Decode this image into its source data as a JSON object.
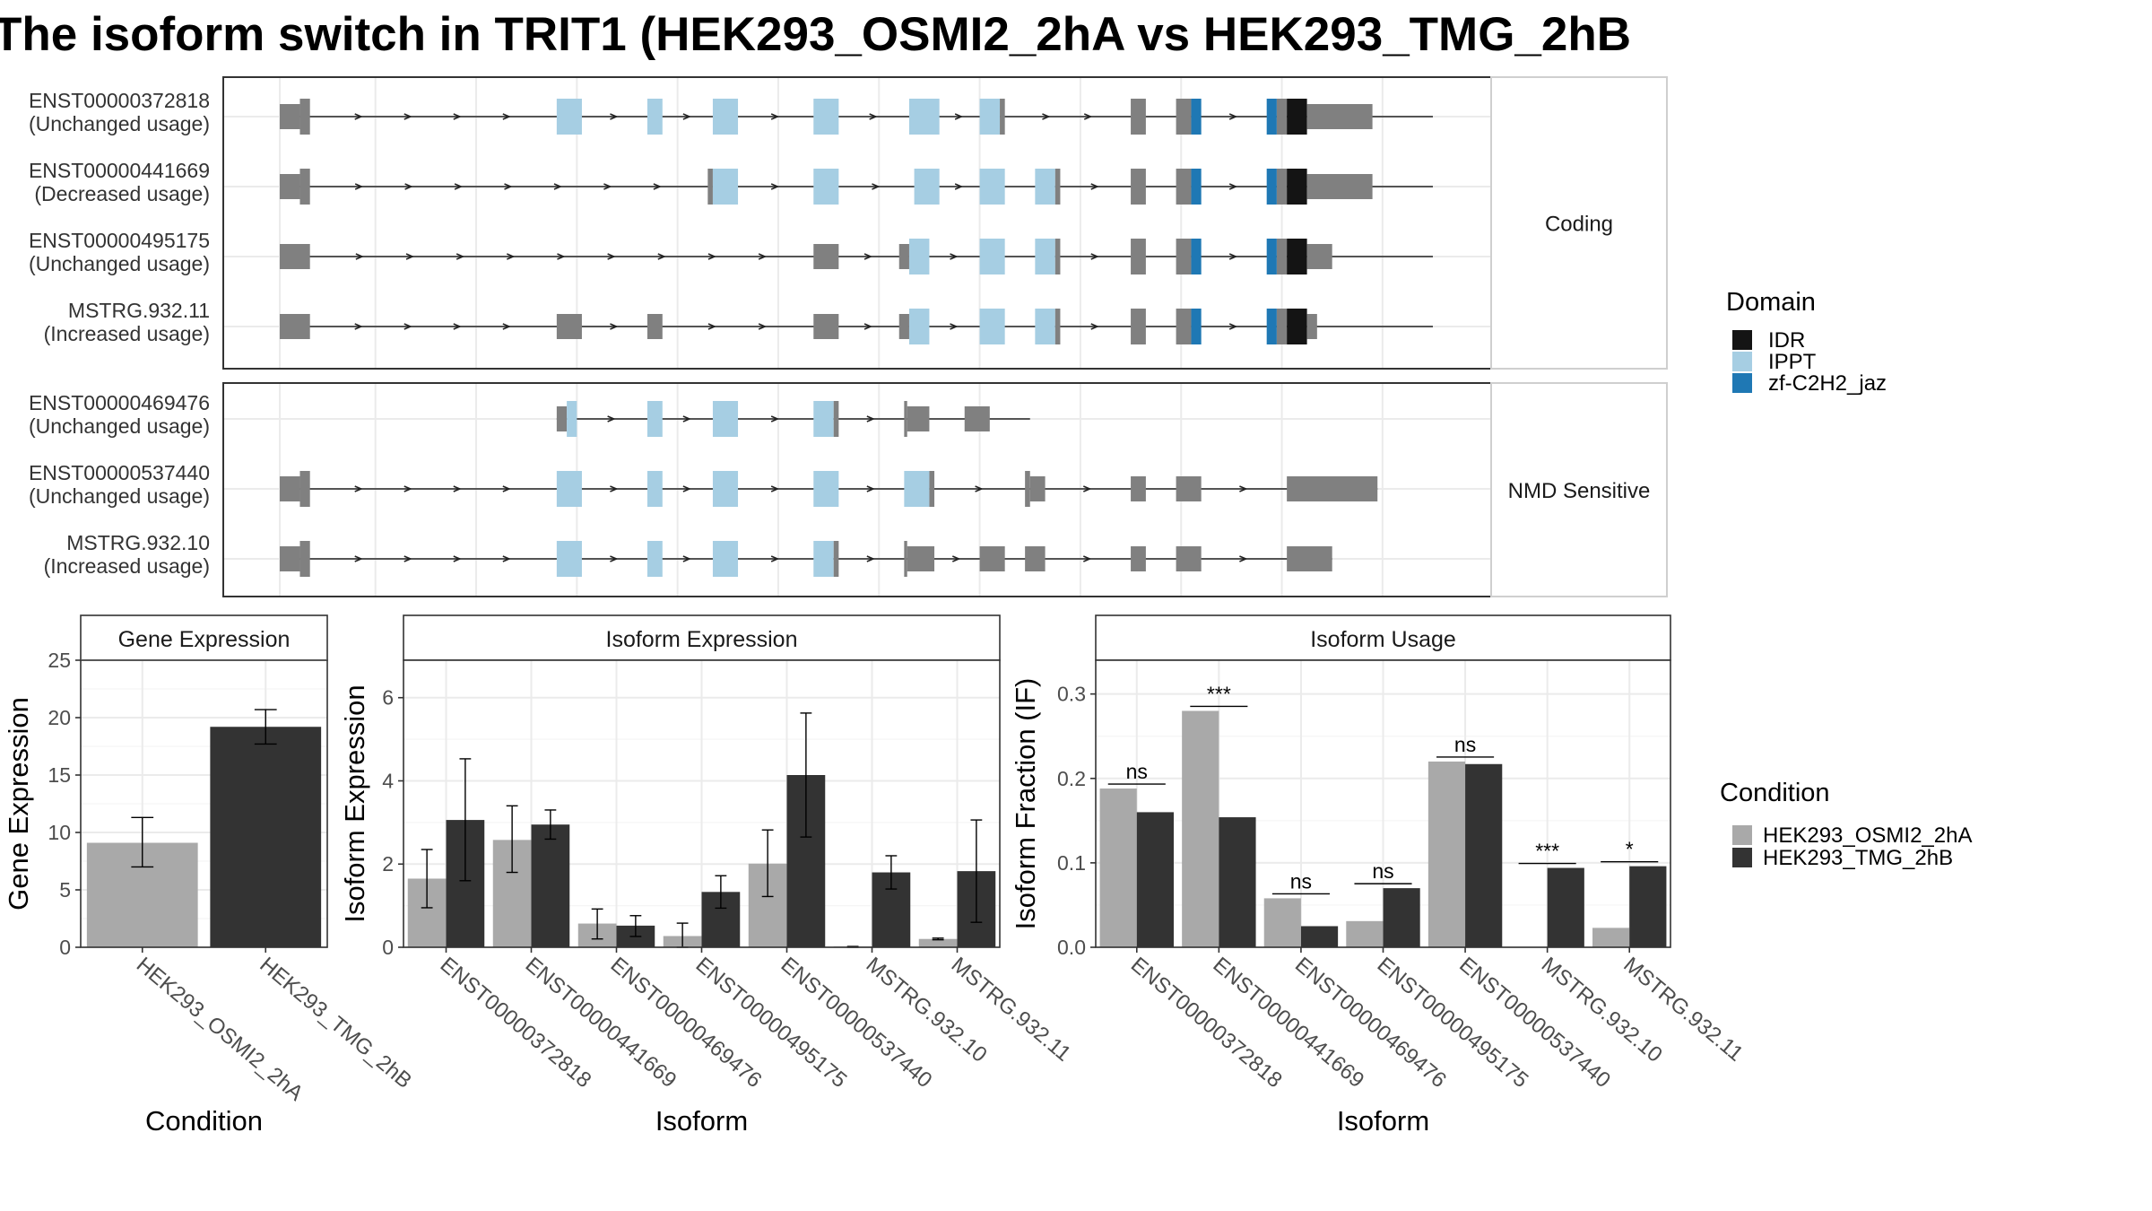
{
  "title": "The isoform switch in TRIT1 (HEK293_OSMI2_2hA vs HEK293_TMG_2hB",
  "colors": {
    "IDR": "#141414",
    "IPPT": "#a6cee3",
    "zf-C2H2_jaz": "#1f78b4",
    "exon": "#808080",
    "cond_a": "#a9a9a9",
    "cond_b": "#333333"
  },
  "structure": {
    "facets": [
      {
        "label": "Coding",
        "transcripts": [
          {
            "id": "ENST00000372818",
            "usage": "(Unchanged usage)",
            "span": [
              1,
              230
            ],
            "exons": [
              [
                1,
                5,
                "u"
              ],
              [
                5,
                7,
                "c"
              ],
              [
                56,
                61,
                "IPPT"
              ],
              [
                74,
                77,
                "IPPT"
              ],
              [
                87,
                92,
                "IPPT"
              ],
              [
                107,
                112,
                "IPPT"
              ],
              [
                126,
                132,
                "IPPT"
              ],
              [
                140,
                144,
                "IPPT"
              ],
              [
                144,
                145,
                "c"
              ],
              [
                170,
                173,
                "c"
              ],
              [
                179,
                182,
                "c"
              ],
              [
                182,
                184,
                "zf-C2H2_jaz"
              ],
              [
                197,
                199,
                "zf-C2H2_jaz"
              ],
              [
                199,
                201,
                "c"
              ],
              [
                201,
                205,
                "IDR"
              ],
              [
                205,
                218,
                "u"
              ]
            ]
          },
          {
            "id": "ENST00000441669",
            "usage": "(Decreased usage)",
            "span": [
              1,
              230
            ],
            "exons": [
              [
                1,
                5,
                "u"
              ],
              [
                5,
                7,
                "c"
              ],
              [
                86,
                87,
                "c"
              ],
              [
                87,
                92,
                "IPPT"
              ],
              [
                107,
                112,
                "IPPT"
              ],
              [
                127,
                132,
                "IPPT"
              ],
              [
                140,
                145,
                "IPPT"
              ],
              [
                151,
                155,
                "IPPT"
              ],
              [
                155,
                156,
                "c"
              ],
              [
                170,
                173,
                "c"
              ],
              [
                179,
                182,
                "c"
              ],
              [
                182,
                184,
                "zf-C2H2_jaz"
              ],
              [
                197,
                199,
                "zf-C2H2_jaz"
              ],
              [
                199,
                201,
                "c"
              ],
              [
                201,
                205,
                "IDR"
              ],
              [
                205,
                218,
                "u"
              ]
            ]
          },
          {
            "id": "ENST00000495175",
            "usage": "(Unchanged usage)",
            "span": [
              1,
              230
            ],
            "exons": [
              [
                1,
                7,
                "u"
              ],
              [
                107,
                112,
                "u"
              ],
              [
                124,
                126,
                "u"
              ],
              [
                126,
                130,
                "IPPT"
              ],
              [
                140,
                145,
                "IPPT"
              ],
              [
                151,
                155,
                "IPPT"
              ],
              [
                155,
                156,
                "c"
              ],
              [
                170,
                173,
                "c"
              ],
              [
                179,
                182,
                "c"
              ],
              [
                182,
                184,
                "zf-C2H2_jaz"
              ],
              [
                197,
                199,
                "zf-C2H2_jaz"
              ],
              [
                199,
                201,
                "c"
              ],
              [
                201,
                205,
                "IDR"
              ],
              [
                205,
                210,
                "u"
              ]
            ]
          },
          {
            "id": "MSTRG.932.11",
            "usage": "(Increased usage)",
            "span": [
              1,
              230
            ],
            "exons": [
              [
                1,
                7,
                "u"
              ],
              [
                56,
                61,
                "u"
              ],
              [
                74,
                77,
                "u"
              ],
              [
                107,
                112,
                "u"
              ],
              [
                124,
                126,
                "u"
              ],
              [
                126,
                130,
                "IPPT"
              ],
              [
                140,
                145,
                "IPPT"
              ],
              [
                151,
                155,
                "IPPT"
              ],
              [
                155,
                156,
                "c"
              ],
              [
                170,
                173,
                "c"
              ],
              [
                179,
                182,
                "c"
              ],
              [
                182,
                184,
                "zf-C2H2_jaz"
              ],
              [
                197,
                199,
                "zf-C2H2_jaz"
              ],
              [
                199,
                201,
                "c"
              ],
              [
                201,
                205,
                "IDR"
              ],
              [
                205,
                207,
                "u"
              ]
            ]
          }
        ]
      },
      {
        "label": "NMD Sensitive",
        "transcripts": [
          {
            "id": "ENST00000469476",
            "usage": "(Unchanged usage)",
            "span": [
              56,
              150
            ],
            "exons": [
              [
                56,
                58,
                "u"
              ],
              [
                58,
                60,
                "IPPT"
              ],
              [
                74,
                77,
                "IPPT"
              ],
              [
                87,
                92,
                "IPPT"
              ],
              [
                107,
                111,
                "IPPT"
              ],
              [
                111,
                112,
                "c"
              ],
              [
                125,
                125.6,
                "c"
              ],
              [
                125.6,
                130,
                "u"
              ],
              [
                137,
                142,
                "u"
              ]
            ]
          },
          {
            "id": "ENST00000537440",
            "usage": "(Unchanged usage)",
            "span": [
              1,
              219
            ],
            "exons": [
              [
                1,
                5,
                "u"
              ],
              [
                5,
                7,
                "c"
              ],
              [
                56,
                61,
                "IPPT"
              ],
              [
                74,
                77,
                "IPPT"
              ],
              [
                87,
                92,
                "IPPT"
              ],
              [
                107,
                112,
                "IPPT"
              ],
              [
                125,
                130,
                "IPPT"
              ],
              [
                130,
                131,
                "c"
              ],
              [
                149,
                150,
                "c"
              ],
              [
                150,
                153,
                "u"
              ],
              [
                170,
                173,
                "u"
              ],
              [
                179,
                184,
                "u"
              ],
              [
                201,
                219,
                "u"
              ]
            ]
          },
          {
            "id": "MSTRG.932.10",
            "usage": "(Increased usage)",
            "span": [
              1,
              210
            ],
            "exons": [
              [
                1,
                5,
                "u"
              ],
              [
                5,
                7,
                "c"
              ],
              [
                56,
                61,
                "IPPT"
              ],
              [
                74,
                77,
                "IPPT"
              ],
              [
                87,
                92,
                "IPPT"
              ],
              [
                107,
                111,
                "IPPT"
              ],
              [
                111,
                112,
                "c"
              ],
              [
                125,
                125.6,
                "c"
              ],
              [
                125.6,
                131,
                "u"
              ],
              [
                140,
                145,
                "u"
              ],
              [
                149,
                153,
                "u"
              ],
              [
                170,
                173,
                "u"
              ],
              [
                179,
                184,
                "u"
              ],
              [
                201,
                210,
                "u"
              ]
            ]
          }
        ]
      }
    ]
  },
  "legend_domain": {
    "title": "Domain",
    "items": [
      {
        "label": "IDR",
        "key": "IDR"
      },
      {
        "label": "IPPT",
        "key": "IPPT"
      },
      {
        "label": "zf-C2H2_jaz",
        "key": "zf-C2H2_jaz"
      }
    ]
  },
  "legend_condition": {
    "title": "Condition",
    "items": [
      {
        "label": "HEK293_OSMI2_2hA",
        "key": "cond_a"
      },
      {
        "label": "HEK293_TMG_2hB",
        "key": "cond_b"
      }
    ]
  },
  "chart_data": [
    {
      "type": "bar",
      "title": "Gene Expression",
      "xlabel": "Condition",
      "ylabel": "Gene Expression",
      "categories": [
        "HEK293_OSMI2_2hA",
        "HEK293_TMG_2hB"
      ],
      "values": [
        9.1,
        19.2
      ],
      "errors": [
        [
          7.0,
          11.3
        ],
        [
          17.7,
          20.7
        ]
      ],
      "ylim": [
        0,
        25
      ],
      "yticks": [
        0,
        5,
        10,
        15,
        20,
        25
      ]
    },
    {
      "type": "bar",
      "title": "Isoform Expression",
      "xlabel": "Isoform",
      "ylabel": "Isoform Expression",
      "categories": [
        "ENST00000372818",
        "ENST00000441669",
        "ENST00000469476",
        "ENST00000495175",
        "ENST00000537440",
        "MSTRG.932.10",
        "MSTRG.932.11"
      ],
      "series": [
        {
          "name": "HEK293_OSMI2_2hA",
          "values": [
            1.65,
            2.58,
            0.57,
            0.27,
            2.01,
            0.02,
            0.2
          ],
          "errors": [
            [
              0.95,
              2.35
            ],
            [
              1.8,
              3.4
            ],
            [
              0.2,
              0.92
            ],
            [
              0.0,
              0.58
            ],
            [
              1.22,
              2.82
            ],
            [
              0.0,
              0.02
            ],
            [
              0.18,
              0.22
            ]
          ]
        },
        {
          "name": "HEK293_TMG_2hB",
          "values": [
            3.06,
            2.95,
            0.52,
            1.33,
            4.14,
            1.8,
            1.83
          ],
          "errors": [
            [
              1.6,
              4.53
            ],
            [
              2.6,
              3.3
            ],
            [
              0.26,
              0.76
            ],
            [
              0.94,
              1.72
            ],
            [
              2.65,
              5.63
            ],
            [
              1.4,
              2.2
            ],
            [
              0.6,
              3.06
            ]
          ]
        }
      ],
      "ylim": [
        0,
        6.9
      ],
      "yticks": [
        0,
        2,
        4,
        6
      ]
    },
    {
      "type": "bar",
      "title": "Isoform Usage",
      "xlabel": "Isoform",
      "ylabel": "Isoform Fraction (IF)",
      "categories": [
        "ENST00000372818",
        "ENST00000441669",
        "ENST00000469476",
        "ENST00000495175",
        "ENST00000537440",
        "MSTRG.932.10",
        "MSTRG.932.11"
      ],
      "series": [
        {
          "name": "HEK293_OSMI2_2hA",
          "values": [
            0.188,
            0.28,
            0.058,
            0.031,
            0.22,
            0.0,
            0.023
          ]
        },
        {
          "name": "HEK293_TMG_2hB",
          "values": [
            0.16,
            0.154,
            0.025,
            0.07,
            0.217,
            0.094,
            0.096
          ]
        }
      ],
      "significance": [
        "ns",
        "***",
        "ns",
        "ns",
        "ns",
        "***",
        "*"
      ],
      "ylim": [
        0,
        0.34
      ],
      "yticks": [
        0.0,
        0.1,
        0.2,
        0.3
      ],
      "ytick_labels": [
        "0.0",
        "0.1",
        "0.2",
        "0.3"
      ]
    }
  ]
}
